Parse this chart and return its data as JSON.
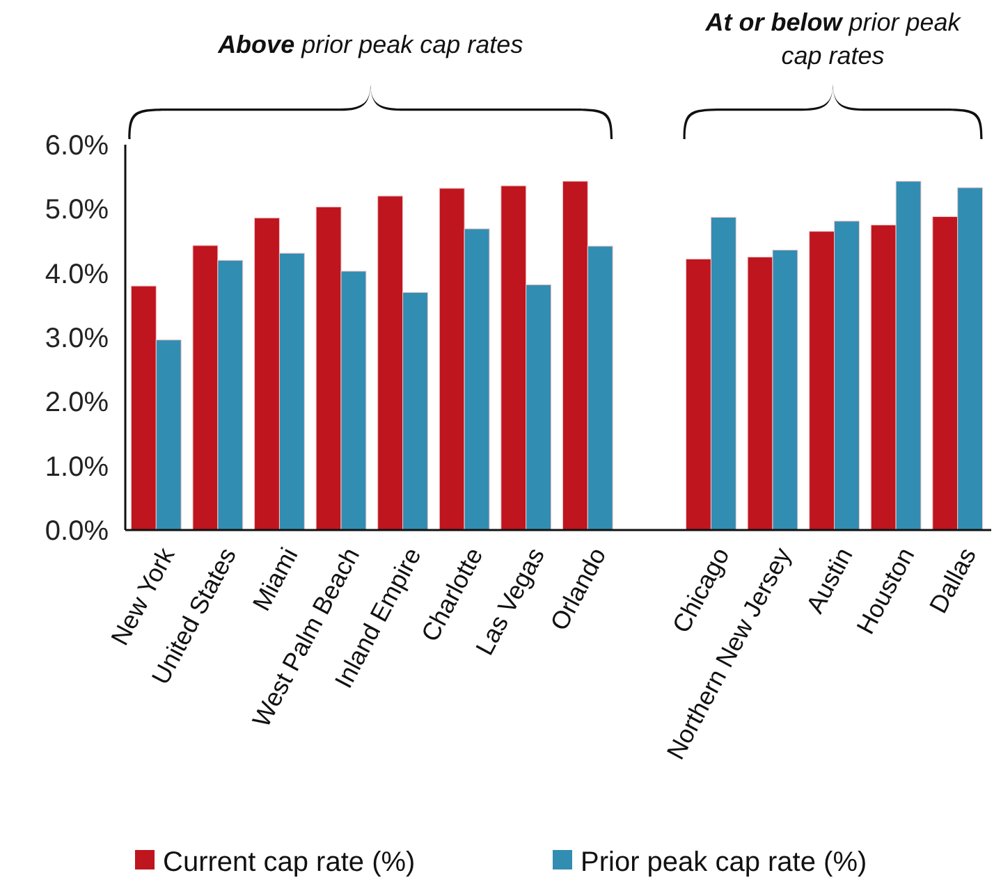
{
  "chart_data": {
    "type": "bar",
    "categories": [
      "New York",
      "United States",
      "Miami",
      "West Palm Beach",
      "Inland Empire",
      "Charlotte",
      "Las Vegas",
      "Orlando",
      null,
      "Chicago",
      "Northern New Jersey",
      "Austin",
      "Houston",
      "Dallas"
    ],
    "series": [
      {
        "name": "Current cap rate (%)",
        "color": "#be151e",
        "values": [
          3.8,
          4.43,
          4.86,
          5.03,
          5.2,
          5.32,
          5.36,
          5.43,
          null,
          4.22,
          4.25,
          4.65,
          4.75,
          4.88
        ]
      },
      {
        "name": "Prior peak cap rate (%)",
        "color": "#318db1",
        "values": [
          2.96,
          4.2,
          4.31,
          4.03,
          3.7,
          4.69,
          3.82,
          4.42,
          null,
          4.87,
          4.36,
          4.81,
          5.43,
          5.33
        ]
      }
    ],
    "ylim": [
      0,
      6
    ],
    "yticks": [
      {
        "value": 0,
        "label": "0.0%"
      },
      {
        "value": 1,
        "label": "1.0%"
      },
      {
        "value": 2,
        "label": "2.0%"
      },
      {
        "value": 3,
        "label": "3.0%"
      },
      {
        "value": 4,
        "label": "4.0%"
      },
      {
        "value": 5,
        "label": "5.0%"
      },
      {
        "value": 6,
        "label": "6.0%"
      }
    ],
    "annotations": [
      "Above prior peak cap rates",
      "At or below prior peak cap rates"
    ],
    "grid": false,
    "legend": "bottom"
  }
}
